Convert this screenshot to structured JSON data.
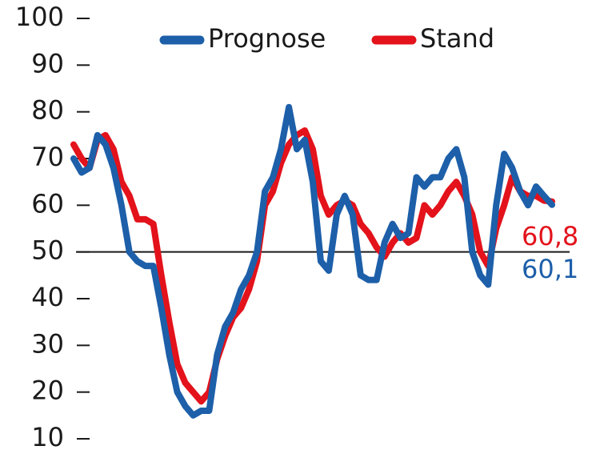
{
  "chart_data": {
    "type": "line",
    "categories": [
      null,
      null,
      null,
      null,
      null,
      null,
      null,
      null,
      null,
      null,
      null,
      null,
      null,
      null,
      null,
      null,
      null,
      null,
      null,
      null,
      null,
      null,
      null,
      null,
      null,
      null,
      null,
      null,
      null,
      null,
      null,
      null,
      null,
      null,
      null,
      null,
      null,
      null,
      null,
      null,
      null,
      null,
      null,
      null,
      null,
      null,
      null,
      null,
      null,
      null,
      null,
      null,
      null,
      null,
      null,
      null,
      null,
      null,
      null,
      null,
      null
    ],
    "series": [
      {
        "name": "Prognose",
        "color": "#1d5fa9",
        "end_label": "60,1",
        "values": [
          70,
          67,
          68,
          75,
          73,
          68,
          60,
          50,
          48,
          47,
          47,
          38,
          28,
          20,
          17,
          15,
          16,
          16,
          28,
          34,
          37,
          42,
          45,
          50,
          63,
          66,
          72,
          81,
          72,
          74,
          65,
          48,
          46,
          58,
          62,
          58,
          45,
          44,
          44,
          52,
          56,
          53,
          54,
          66,
          64,
          66,
          66,
          70,
          72,
          66,
          50,
          45,
          43,
          60,
          71,
          68,
          63,
          60,
          64,
          62,
          60.1
        ]
      },
      {
        "name": "Stand",
        "color": "#e3121b",
        "end_label": "60,8",
        "values": [
          73,
          70,
          68,
          74,
          75,
          72,
          65,
          62,
          57,
          57,
          56,
          45,
          35,
          26,
          22,
          20,
          18,
          20,
          27,
          32,
          36,
          38,
          42,
          48,
          60,
          63,
          69,
          73,
          75,
          76,
          72,
          62,
          58,
          60,
          61,
          60,
          56,
          54,
          51,
          49,
          52,
          54,
          52,
          53,
          60,
          58,
          60,
          63,
          65,
          62,
          58,
          50,
          47,
          55,
          60,
          66,
          63,
          62,
          62,
          61,
          60.8
        ]
      }
    ],
    "ylim": [
      10,
      100
    ],
    "yticks": [
      10,
      20,
      30,
      40,
      50,
      60,
      70,
      80,
      90,
      100
    ],
    "reference_line": 50,
    "legend": "top"
  }
}
